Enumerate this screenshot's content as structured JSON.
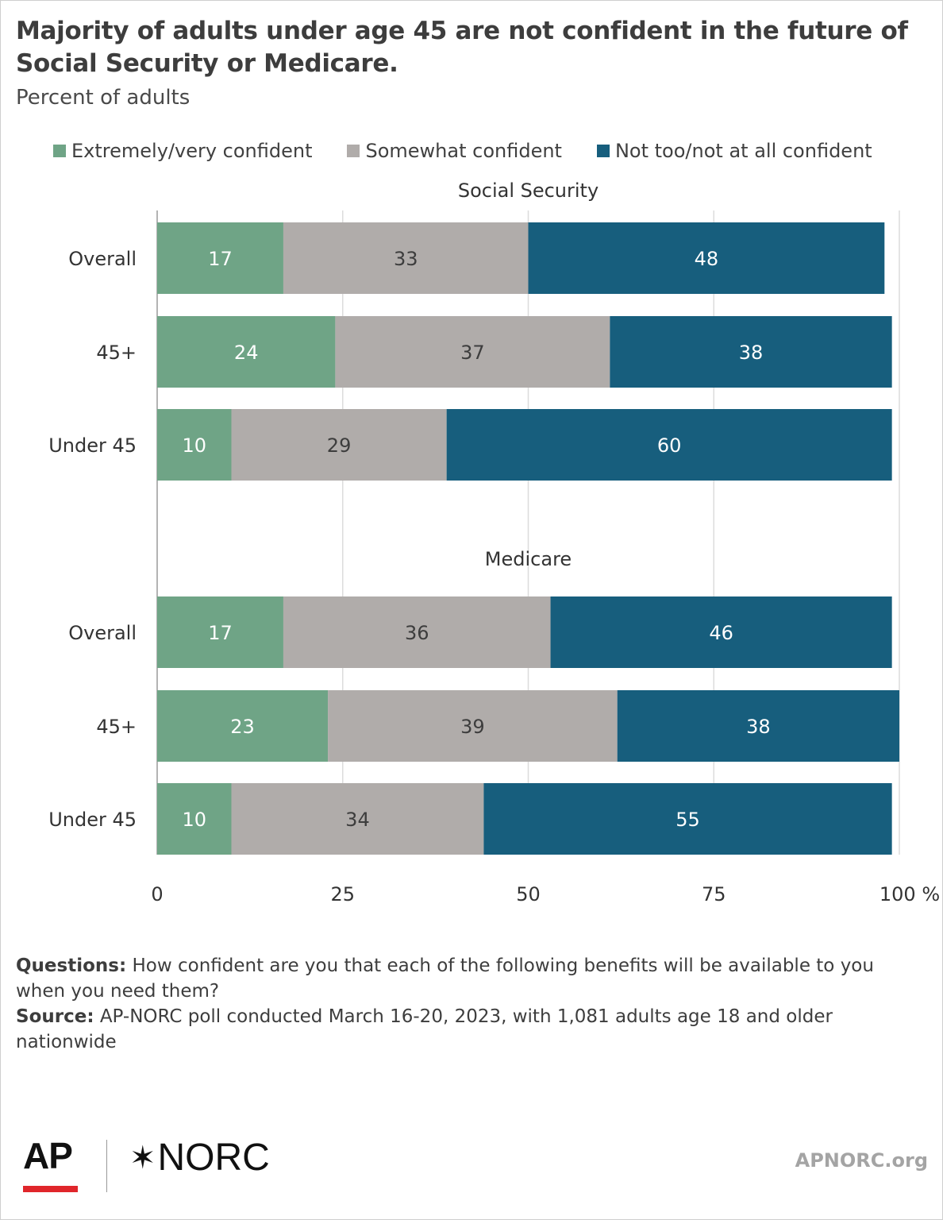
{
  "header": {
    "title": "Majority of adults under age 45 are not confident in the future of Social Security or Medicare.",
    "subtitle": "Percent of adults"
  },
  "colors": {
    "extremely_very": "#6fa486",
    "somewhat": "#b0acaa",
    "not_too": "#175e7d",
    "grid": "#dcdcdc"
  },
  "legend": [
    {
      "label": "Extremely/very confident",
      "color": "#6fa486"
    },
    {
      "label": "Somewhat confident",
      "color": "#b0acaa"
    },
    {
      "label": "Not too/not at all confident",
      "color": "#175e7d"
    }
  ],
  "chart_data": {
    "type": "bar",
    "orientation": "horizontal",
    "stacked": true,
    "xlim": [
      0,
      100
    ],
    "x_ticks": [
      0,
      25,
      50,
      75,
      100
    ],
    "x_tick_labels": [
      "0",
      "25",
      "50",
      "75",
      "100 %"
    ],
    "grid": true,
    "legend_position": "top",
    "series_names": [
      "Extremely/very confident",
      "Somewhat confident",
      "Not too/not at all confident"
    ],
    "panels": [
      {
        "title": "Social Security",
        "categories": [
          "Overall",
          "45+",
          "Under 45"
        ],
        "series": [
          {
            "name": "Extremely/very confident",
            "values": [
              17,
              24,
              10
            ]
          },
          {
            "name": "Somewhat confident",
            "values": [
              33,
              37,
              29
            ]
          },
          {
            "name": "Not too/not at all confident",
            "values": [
              48,
              38,
              60
            ]
          }
        ]
      },
      {
        "title": "Medicare",
        "categories": [
          "Overall",
          "45+",
          "Under 45"
        ],
        "series": [
          {
            "name": "Extremely/very confident",
            "values": [
              17,
              23,
              10
            ]
          },
          {
            "name": "Somewhat confident",
            "values": [
              36,
              39,
              34
            ]
          },
          {
            "name": "Not too/not at all confident",
            "values": [
              46,
              38,
              55
            ]
          }
        ]
      }
    ]
  },
  "notes": {
    "questions_label": "Questions:",
    "questions_text": " How confident are you that each of the following benefits will be available to you when you need them?",
    "source_label": "Source:",
    "source_text": " AP-NORC poll conducted March 16-20, 2023, with 1,081 adults age 18 and older nationwide"
  },
  "footer": {
    "ap_logo": "AP",
    "norc_star": "✶",
    "norc_logo": "NORC",
    "site": "APNORC.org"
  }
}
